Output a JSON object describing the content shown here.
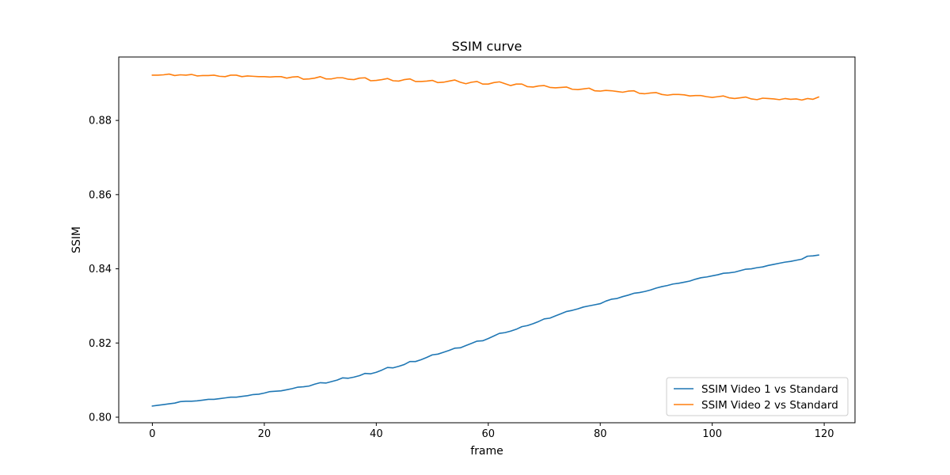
{
  "chart_data": {
    "type": "line",
    "title": "SSIM curve",
    "xlabel": "frame",
    "ylabel": "SSIM",
    "xlim": [
      -6,
      125.5
    ],
    "ylim": [
      0.7985,
      0.8971
    ],
    "xticks": [
      0,
      20,
      40,
      60,
      80,
      100,
      120
    ],
    "xtick_labels": [
      "0",
      "20",
      "40",
      "60",
      "80",
      "100",
      "120"
    ],
    "yticks": [
      0.8,
      0.82,
      0.84,
      0.86,
      0.88
    ],
    "ytick_labels": [
      "0.80",
      "0.82",
      "0.84",
      "0.86",
      "0.88"
    ],
    "grid": false,
    "legend_position": "lower-right",
    "series": [
      {
        "name": "SSIM Video 1 vs Standard",
        "color": "#1f77b4",
        "x_start": 0,
        "x_step": 1,
        "values": [
          0.803,
          0.8032,
          0.8034,
          0.8036,
          0.8038,
          0.8042,
          0.8043,
          0.8043,
          0.8044,
          0.8046,
          0.8048,
          0.8048,
          0.805,
          0.8052,
          0.8054,
          0.8054,
          0.8056,
          0.8058,
          0.8061,
          0.8062,
          0.8065,
          0.8069,
          0.807,
          0.8071,
          0.8074,
          0.8077,
          0.8081,
          0.8082,
          0.8084,
          0.8089,
          0.8093,
          0.8092,
          0.8096,
          0.81,
          0.8106,
          0.8105,
          0.8108,
          0.8112,
          0.8118,
          0.8117,
          0.8121,
          0.8127,
          0.8134,
          0.8133,
          0.8137,
          0.8142,
          0.815,
          0.815,
          0.8155,
          0.8161,
          0.8168,
          0.817,
          0.8175,
          0.818,
          0.8186,
          0.8187,
          0.8193,
          0.8199,
          0.8205,
          0.8206,
          0.8212,
          0.8219,
          0.8226,
          0.8228,
          0.8232,
          0.8237,
          0.8244,
          0.8247,
          0.8252,
          0.8258,
          0.8265,
          0.8267,
          0.8273,
          0.8279,
          0.8285,
          0.8288,
          0.8292,
          0.8297,
          0.83,
          0.8303,
          0.8306,
          0.8313,
          0.8318,
          0.832,
          0.8325,
          0.8329,
          0.8334,
          0.8336,
          0.8339,
          0.8343,
          0.8348,
          0.8352,
          0.8355,
          0.8359,
          0.8361,
          0.8364,
          0.8367,
          0.8372,
          0.8376,
          0.8378,
          0.8381,
          0.8384,
          0.8388,
          0.8389,
          0.8391,
          0.8395,
          0.8399,
          0.84,
          0.8403,
          0.8405,
          0.8409,
          0.8412,
          0.8415,
          0.8418,
          0.842,
          0.8423,
          0.8426,
          0.8434,
          0.8435,
          0.8437
        ]
      },
      {
        "name": "SSIM Video 2 vs Standard",
        "color": "#ff7f0e",
        "x_start": 0,
        "x_step": 1,
        "values": [
          0.8922,
          0.8922,
          0.8923,
          0.8925,
          0.8921,
          0.8923,
          0.8922,
          0.8924,
          0.892,
          0.8921,
          0.8921,
          0.8922,
          0.8919,
          0.8918,
          0.8922,
          0.8922,
          0.8918,
          0.892,
          0.8919,
          0.8918,
          0.8918,
          0.8917,
          0.8918,
          0.8918,
          0.8914,
          0.8917,
          0.8918,
          0.8911,
          0.8912,
          0.8914,
          0.8918,
          0.8912,
          0.8912,
          0.8915,
          0.8915,
          0.8911,
          0.891,
          0.8914,
          0.8915,
          0.8907,
          0.8908,
          0.891,
          0.8913,
          0.8907,
          0.8906,
          0.891,
          0.8912,
          0.8905,
          0.8905,
          0.8906,
          0.8908,
          0.8902,
          0.8903,
          0.8906,
          0.8909,
          0.8903,
          0.8899,
          0.8903,
          0.8905,
          0.8898,
          0.8898,
          0.8902,
          0.8904,
          0.8899,
          0.8894,
          0.8898,
          0.8898,
          0.8891,
          0.889,
          0.8893,
          0.8894,
          0.8889,
          0.8888,
          0.8889,
          0.889,
          0.8884,
          0.8883,
          0.8885,
          0.8887,
          0.888,
          0.8879,
          0.8881,
          0.888,
          0.8878,
          0.8876,
          0.8879,
          0.888,
          0.8873,
          0.8872,
          0.8874,
          0.8875,
          0.887,
          0.8868,
          0.887,
          0.887,
          0.8869,
          0.8866,
          0.8867,
          0.8867,
          0.8864,
          0.8862,
          0.8864,
          0.8866,
          0.8861,
          0.8859,
          0.8861,
          0.8863,
          0.8858,
          0.8856,
          0.886,
          0.8859,
          0.8858,
          0.8856,
          0.8859,
          0.8857,
          0.8858,
          0.8855,
          0.8859,
          0.8857,
          0.8863
        ]
      }
    ]
  }
}
